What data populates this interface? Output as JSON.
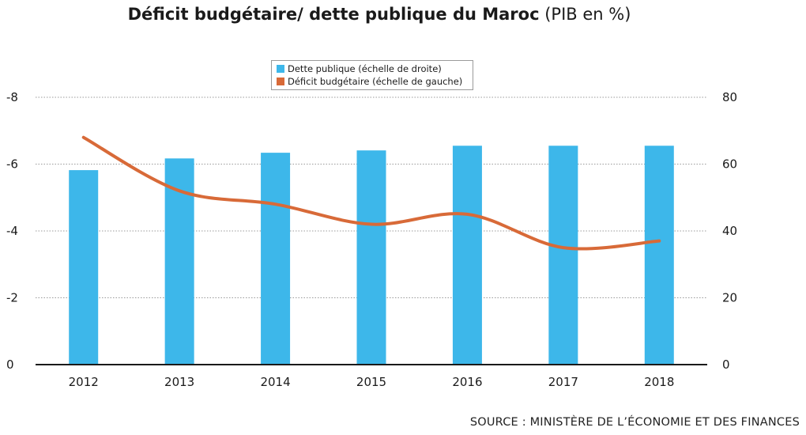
{
  "title": {
    "main": "Déficit budgétaire/ dette publique du Maroc",
    "sub": "(PIB en %)"
  },
  "legend": {
    "entries": [
      {
        "label": "Dette publique (échelle de droite)",
        "color": "#3db7ea"
      },
      {
        "label": "Déficit budgétaire (échelle de gauche)",
        "color": "#d86a38"
      }
    ]
  },
  "source": "SOURCE : MINISTÈRE DE L’ÉCONOMIE ET DES FINANCES",
  "chart_data": {
    "type": "bar",
    "categories": [
      "2012",
      "2013",
      "2014",
      "2015",
      "2016",
      "2017",
      "2018"
    ],
    "series": [
      {
        "name": "Dette publique (échelle de droite)",
        "kind": "bar",
        "axis": "right",
        "color": "#3db7ea",
        "values": [
          58.2,
          61.7,
          63.4,
          64.1,
          65.5,
          65.5,
          65.5
        ]
      },
      {
        "name": "Déficit budgétaire (échelle de gauche)",
        "kind": "line",
        "axis": "left",
        "color": "#d86a38",
        "values": [
          -6.8,
          -5.2,
          -4.8,
          -4.2,
          -4.5,
          -3.5,
          -3.7
        ]
      }
    ],
    "left_axis": {
      "range": [
        0,
        -8
      ],
      "ticks": [
        "0",
        "-2",
        "-4",
        "-6",
        "-8"
      ],
      "tick_values": [
        0,
        -2,
        -4,
        -6,
        -8
      ]
    },
    "right_axis": {
      "range": [
        0,
        80
      ],
      "ticks": [
        "0",
        "20",
        "40",
        "60",
        "80"
      ],
      "tick_values": [
        0,
        20,
        40,
        60,
        80
      ]
    },
    "grid": true,
    "legend_position": "top-center"
  }
}
